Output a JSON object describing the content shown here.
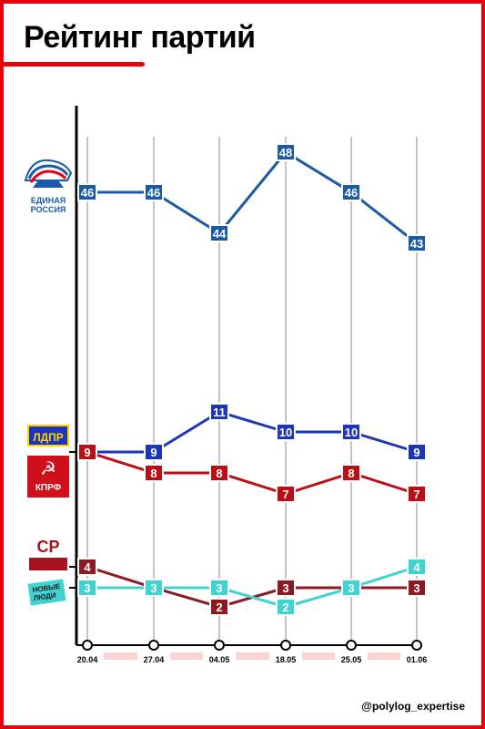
{
  "title": "Рейтинг партий",
  "credit": "@polylog_expertise",
  "logos": {
    "er_line1": "ЕДИНАЯ",
    "er_line2": "РОССИЯ",
    "ldpr": "ЛДПР",
    "kprf": "КПРФ",
    "kprf_symbol": "☭",
    "sr": "СР",
    "nl_line1": "НОВЫЕ",
    "nl_line2": "ЛЮДИ"
  },
  "colors": {
    "accent": "#e8000b",
    "er": "#1a5aa6",
    "ldpr": "#1d36b7",
    "kprf": "#bd0e16",
    "sr": "#8b1a22",
    "nl": "#3fd3d1"
  },
  "chart_data": {
    "type": "line",
    "categories": [
      "20.04",
      "27.04",
      "04.05",
      "18.05",
      "25.05",
      "01.06"
    ],
    "series": [
      {
        "party": "er",
        "values": [
          46,
          46,
          44,
          48,
          46,
          43
        ]
      },
      {
        "party": "ldpr",
        "values": [
          9,
          9,
          11,
          10,
          10,
          9
        ]
      },
      {
        "party": "kprf",
        "values": [
          9,
          8,
          8,
          7,
          8,
          7
        ]
      },
      {
        "party": "sr",
        "values": [
          4,
          3,
          2,
          3,
          3,
          3
        ]
      },
      {
        "party": "nl",
        "values": [
          3,
          3,
          3,
          2,
          3,
          4
        ]
      }
    ]
  }
}
